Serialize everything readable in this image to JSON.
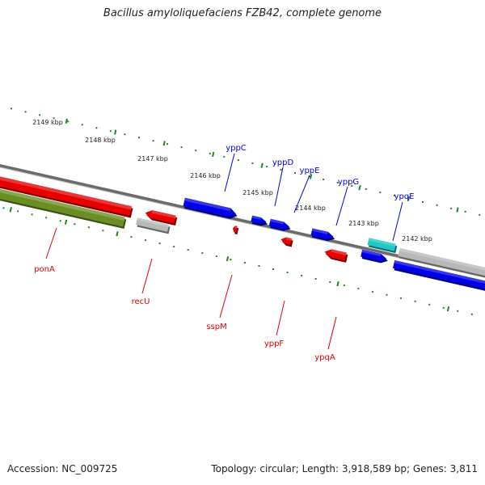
{
  "title": "Bacillus amyloliquefaciens FZB42, complete genome",
  "footer": {
    "accession": "Accession: NC_009725",
    "topology": "Topology: circular; Length: 3,918,589 bp; Genes: 3,811"
  },
  "colors": {
    "background": "#ffffff",
    "backbone": "#6b6b6b",
    "tick": "#1a8a1a",
    "forward_gene": "#0000e6",
    "reverse_gene": "#e60000",
    "other_gene": "#b8b8b8",
    "rna_gene": "#1fc7c7",
    "olive_gene": "#6b8e23"
  },
  "ruler_labels": [
    "2149 kbp",
    "2148 kbp",
    "2147 kbp",
    "2146 kbp",
    "2145 kbp",
    "2144 kbp",
    "2143 kbp",
    "2142 kbp"
  ],
  "gene_labels": {
    "forward": [
      "yppC",
      "yppD",
      "yppE",
      "yppG",
      "ypqE"
    ],
    "reverse": [
      "ponA",
      "recU",
      "sspM",
      "yppF",
      "ypqA"
    ]
  }
}
